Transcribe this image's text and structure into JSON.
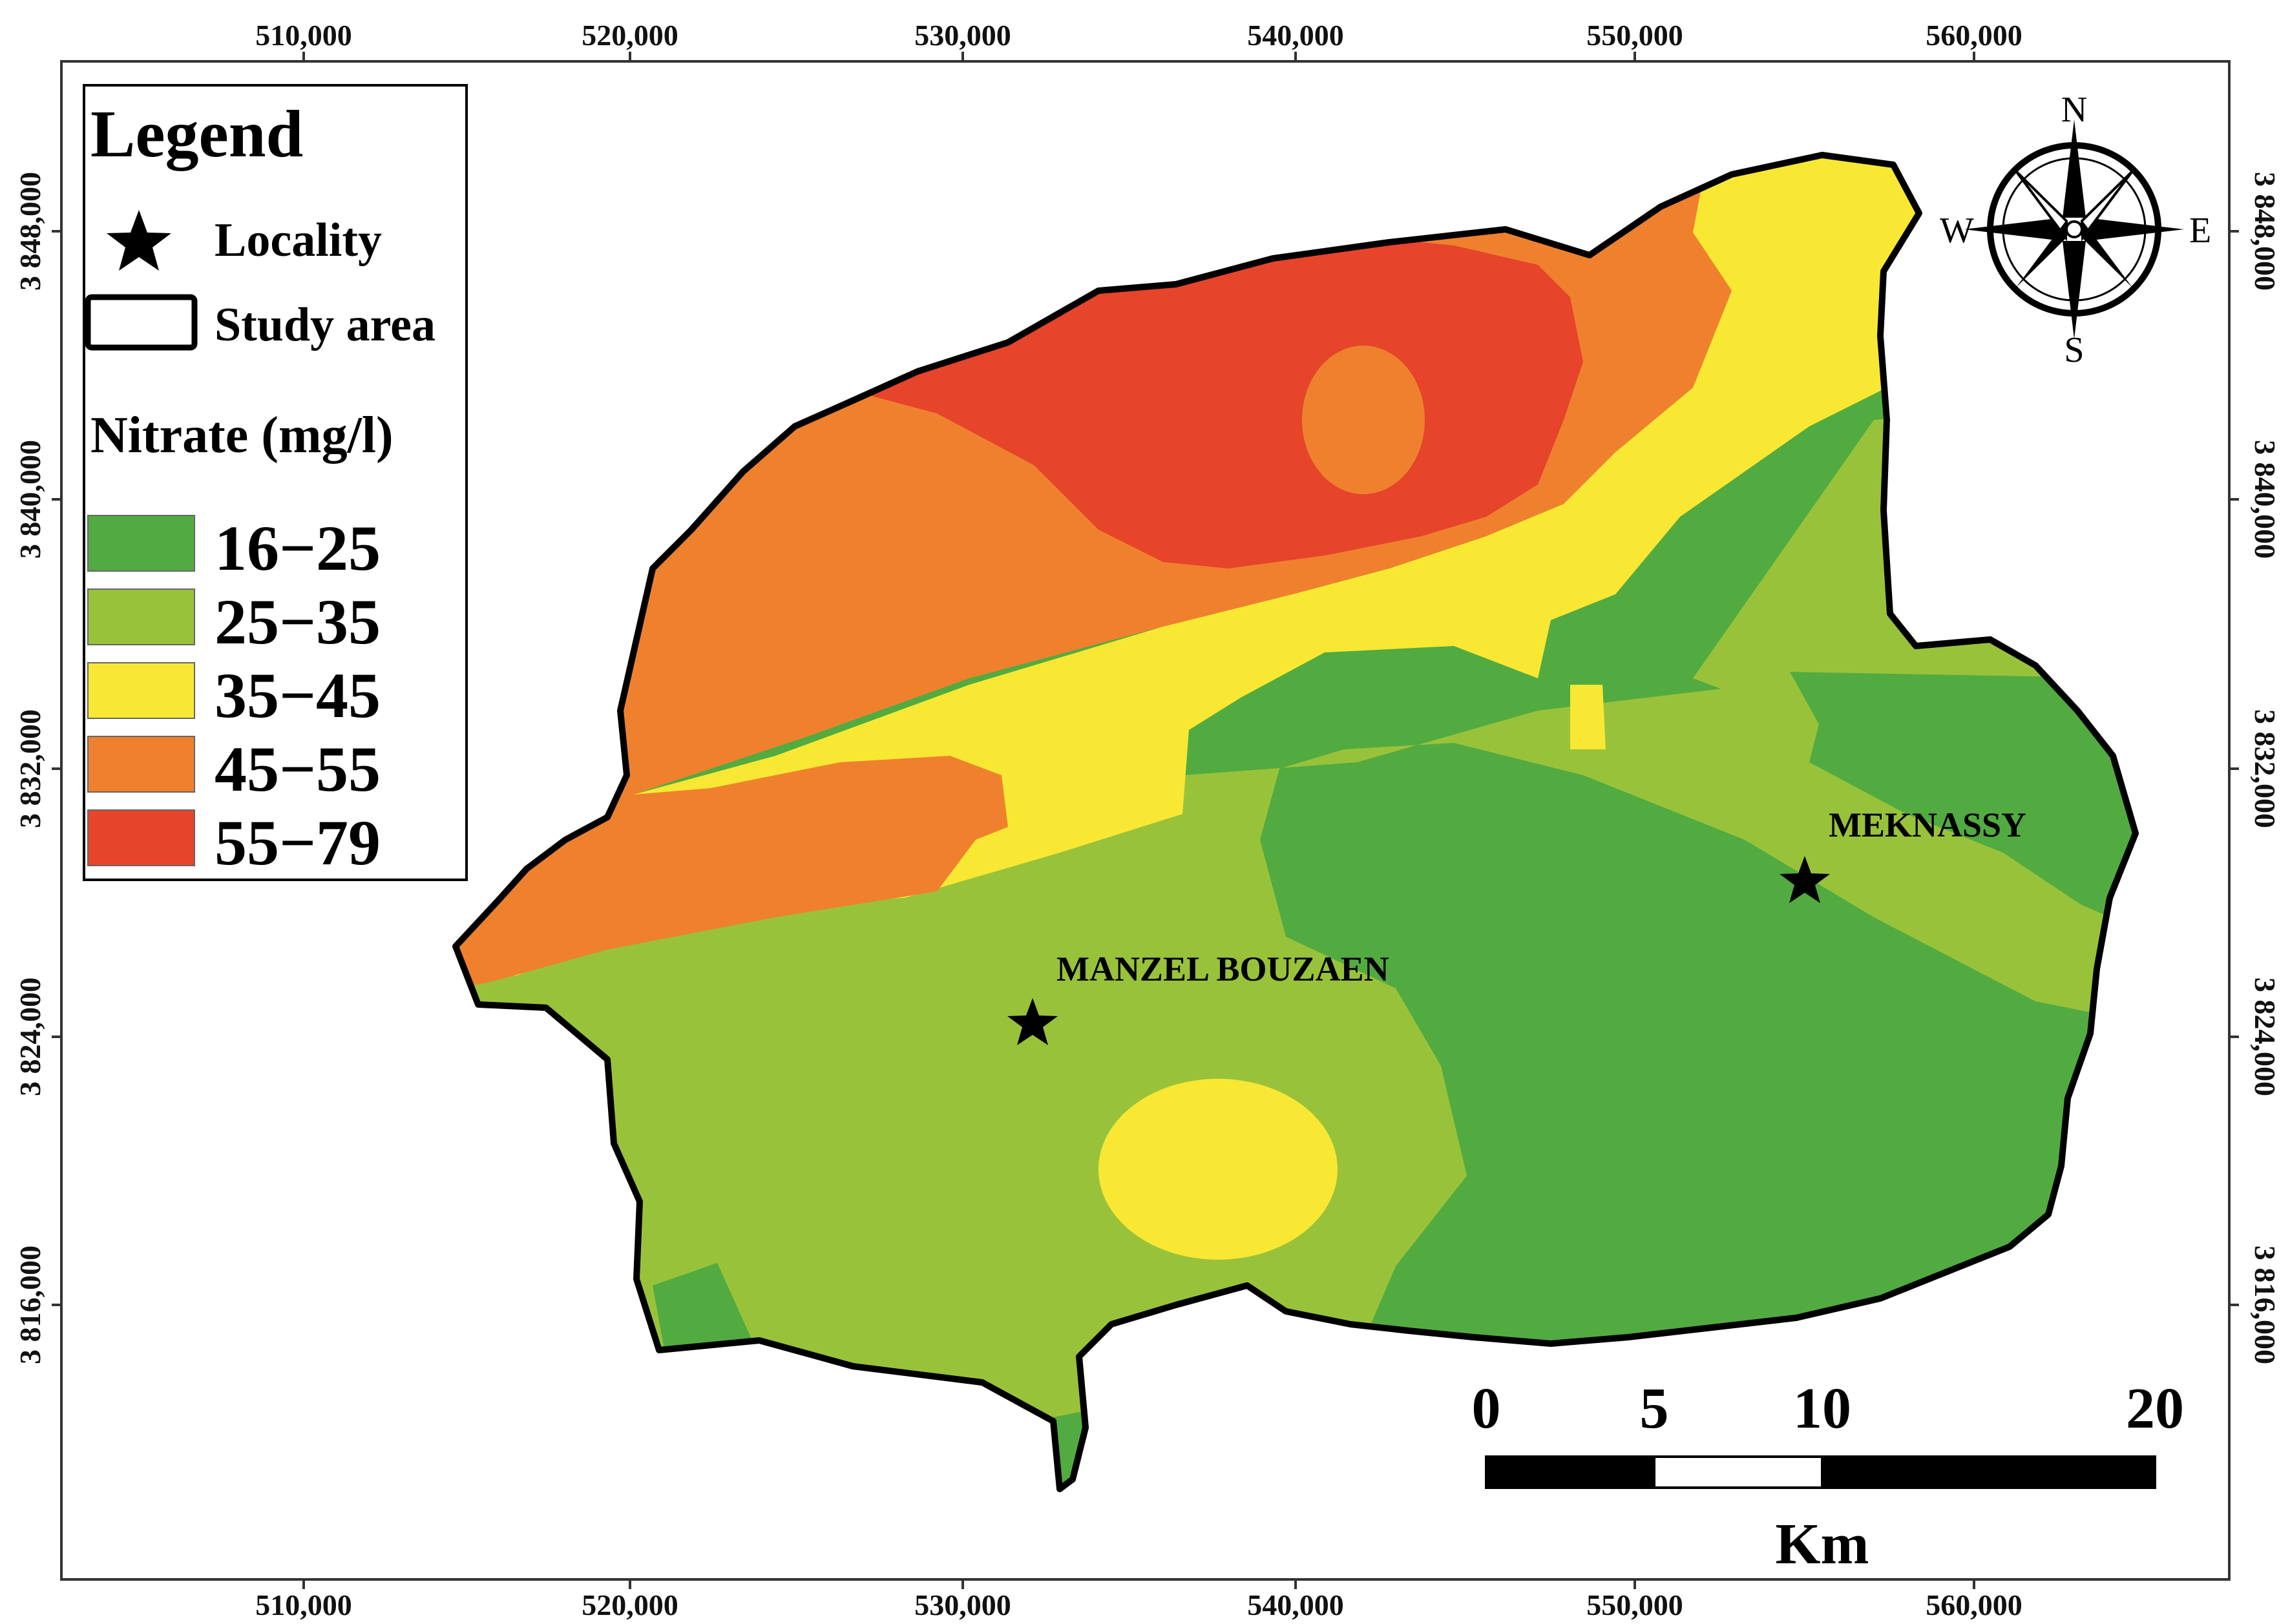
{
  "legend": {
    "title": "Legend",
    "locality_label": "Locality",
    "study_area_label": "Study area",
    "nitrate_title": "Nitrate (mg/l)",
    "classes": [
      {
        "label": "16−25",
        "color": "#52ab40"
      },
      {
        "label": "25−35",
        "color": "#99c23b"
      },
      {
        "label": "35−45",
        "color": "#f8e833"
      },
      {
        "label": "45−55",
        "color": "#ef812e"
      },
      {
        "label": "55−79",
        "color": "#e6442b"
      }
    ]
  },
  "axes": {
    "x_ticks": [
      "510,000",
      "520,000",
      "530,000",
      "540,000",
      "550,000",
      "560,000"
    ],
    "y_ticks": [
      "3 848,000",
      "3 840,000",
      "3 832,000",
      "3 824,000",
      "3 816,000"
    ]
  },
  "places": {
    "manzel": "MANZEL BOUZAEN",
    "meknassy": "MEKNASSY"
  },
  "compass": {
    "n": "N",
    "s": "S",
    "e": "E",
    "w": "W"
  },
  "scale": {
    "labels": [
      "0",
      "5",
      "10",
      "20"
    ],
    "unit": "Km"
  }
}
